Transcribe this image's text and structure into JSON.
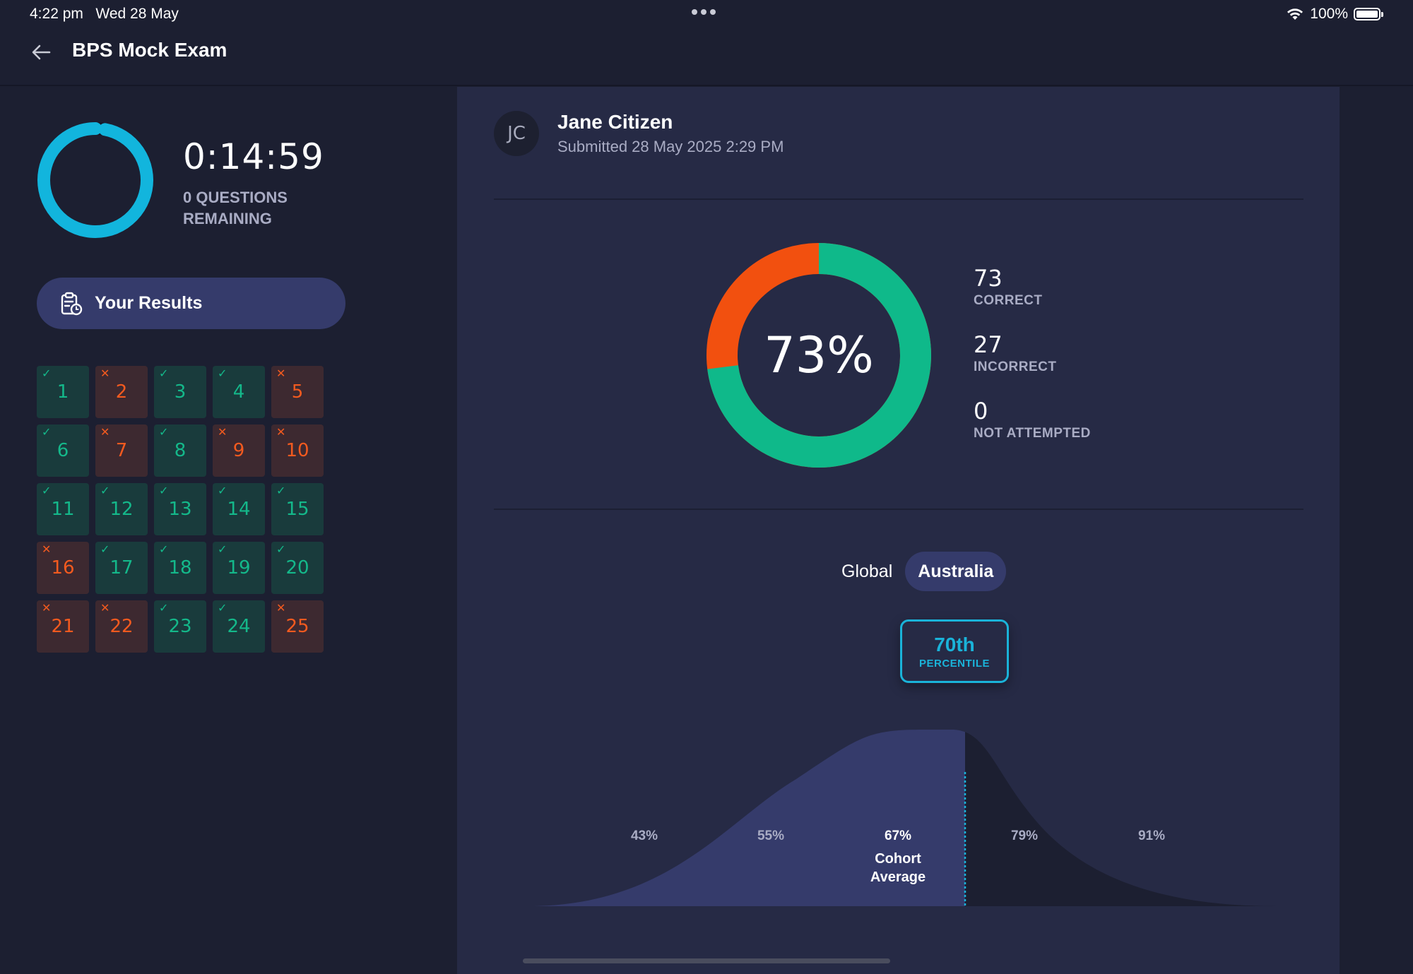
{
  "status_bar": {
    "time": "4:22 pm",
    "date": "Wed 28 May",
    "battery": "100%"
  },
  "header": {
    "title": "BPS Mock Exam"
  },
  "timer": {
    "value": "0:14:59",
    "remaining_label": "0 QUESTIONS REMAINING",
    "progress": 0.97,
    "color": "#12b5dd"
  },
  "results_button": {
    "label": "Your Results"
  },
  "questions": [
    {
      "n": "1",
      "status": "correct"
    },
    {
      "n": "2",
      "status": "incorrect"
    },
    {
      "n": "3",
      "status": "correct"
    },
    {
      "n": "4",
      "status": "correct"
    },
    {
      "n": "5",
      "status": "incorrect"
    },
    {
      "n": "6",
      "status": "correct"
    },
    {
      "n": "7",
      "status": "incorrect"
    },
    {
      "n": "8",
      "status": "correct"
    },
    {
      "n": "9",
      "status": "incorrect"
    },
    {
      "n": "10",
      "status": "incorrect"
    },
    {
      "n": "11",
      "status": "correct"
    },
    {
      "n": "12",
      "status": "correct"
    },
    {
      "n": "13",
      "status": "correct"
    },
    {
      "n": "14",
      "status": "correct"
    },
    {
      "n": "15",
      "status": "correct"
    },
    {
      "n": "16",
      "status": "incorrect"
    },
    {
      "n": "17",
      "status": "correct"
    },
    {
      "n": "18",
      "status": "correct"
    },
    {
      "n": "19",
      "status": "correct"
    },
    {
      "n": "20",
      "status": "correct"
    },
    {
      "n": "21",
      "status": "incorrect"
    },
    {
      "n": "22",
      "status": "incorrect"
    },
    {
      "n": "23",
      "status": "correct"
    },
    {
      "n": "24",
      "status": "correct"
    },
    {
      "n": "25",
      "status": "incorrect"
    }
  ],
  "user": {
    "initials": "JC",
    "name": "Jane Citizen",
    "submitted": "Submitted 28 May 2025 2:29 PM"
  },
  "score": {
    "percent_label": "73%",
    "correct": 73,
    "incorrect": 27,
    "not_attempted": 0,
    "correct_label": "CORRECT",
    "incorrect_label": "INCORRECT",
    "not_attempted_label": "NOT ATTEMPTED",
    "colors": {
      "correct": "#0fb98a",
      "incorrect": "#f2500f"
    }
  },
  "cohort": {
    "tabs": [
      {
        "label": "Global",
        "active": false
      },
      {
        "label": "Australia",
        "active": true
      }
    ],
    "percentile": "70th",
    "percentile_label": "PERCENTILE",
    "ticks": [
      "43%",
      "55%",
      "67%",
      "79%",
      "91%"
    ],
    "average_label": "Cohort Average",
    "fill_color": "#353b6b"
  }
}
